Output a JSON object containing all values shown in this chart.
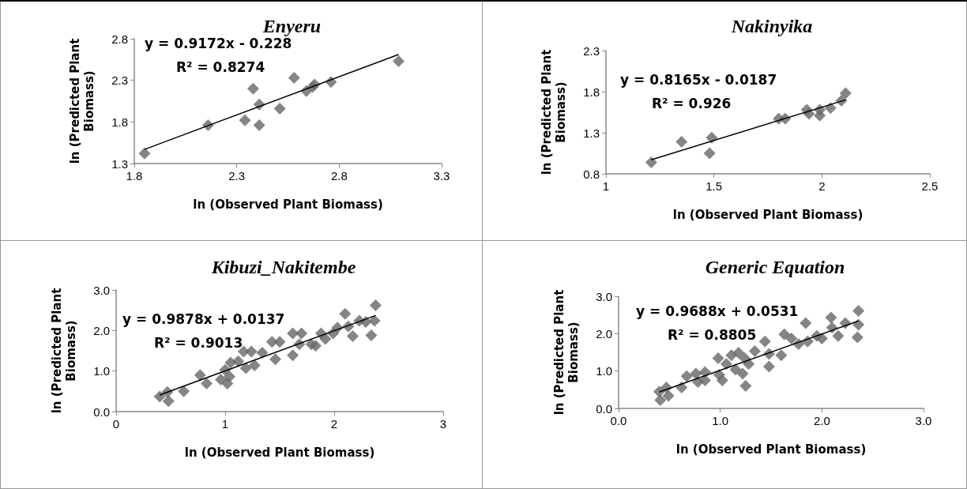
{
  "chart_data": [
    {
      "type": "scatter",
      "title": "Enyeru",
      "xlabel": "ln (Observed Plant Biomass)",
      "ylabel": "ln (Predicted Plant Biomass)",
      "xlim": [
        1.8,
        3.3
      ],
      "xticks": [
        1.8,
        2.3,
        2.8,
        3.3
      ],
      "ylim": [
        1.3,
        2.8
      ],
      "yticks": [
        1.3,
        1.8,
        2.3,
        2.8
      ],
      "grid": false,
      "marker": "diamond",
      "annotations": [
        "y = 0.9172x - 0.228",
        "R² = 0.8274"
      ],
      "series": [
        {
          "color": "#666666",
          "x": [
            1.85,
            2.16,
            2.34,
            2.38,
            2.41,
            2.41,
            2.51,
            2.58,
            2.64,
            2.67,
            2.68,
            2.76,
            3.09
          ],
          "values": [
            1.42,
            1.76,
            1.82,
            2.2,
            1.76,
            2.01,
            1.96,
            2.33,
            2.17,
            2.22,
            2.25,
            2.28,
            2.53
          ]
        },
        {
          "type": "line",
          "marker": "none",
          "color": "#000000",
          "x": [
            1.85,
            3.09
          ],
          "values": [
            1.47,
            2.61
          ]
        }
      ]
    },
    {
      "type": "scatter",
      "title": "Nakinyika",
      "xlabel": "ln (Observed Plant Biomass)",
      "ylabel": "ln (Predicted Plant Biomass)",
      "xlim": [
        1,
        2.5
      ],
      "xticks": [
        1,
        1.5,
        2,
        2.5
      ],
      "ylim": [
        0.8,
        2.3
      ],
      "yticks": [
        0.8,
        1.3,
        1.8,
        2.3
      ],
      "grid": false,
      "marker": "diamond",
      "annotations": [
        "y = 0.8165x - 0.0187",
        "R² = 0.926"
      ],
      "series": [
        {
          "color": "#666666",
          "x": [
            1.21,
            1.35,
            1.49,
            1.48,
            1.8,
            1.83,
            1.93,
            1.94,
            1.99,
            1.99,
            2.04,
            2.09,
            2.11
          ],
          "values": [
            0.94,
            1.19,
            1.24,
            1.05,
            1.47,
            1.47,
            1.58,
            1.53,
            1.51,
            1.58,
            1.6,
            1.69,
            1.78
          ]
        },
        {
          "type": "line",
          "marker": "none",
          "color": "#000000",
          "x": [
            1.21,
            2.11
          ],
          "values": [
            0.97,
            1.7
          ]
        }
      ]
    },
    {
      "type": "scatter",
      "title": "Kibuzi_Nakitembe",
      "xlabel": "ln (Observed Plant Biomass)",
      "ylabel": "ln (Predicted Plant Biomass)",
      "xlim": [
        0,
        3
      ],
      "xticks": [
        0,
        1,
        2,
        3
      ],
      "ylim": [
        0,
        3
      ],
      "yticks": [
        {
          "value": 0,
          "label": "0.0"
        },
        {
          "value": 1,
          "label": "1.0"
        },
        {
          "value": 2,
          "label": "2.0"
        },
        {
          "value": 3,
          "label": "3.0"
        }
      ],
      "grid": false,
      "marker": "diamond",
      "annotations": [
        "y = 0.9878x + 0.0137",
        "R² = 0.9013"
      ],
      "series": [
        {
          "color": "#666666",
          "x": [
            0.4,
            0.47,
            0.48,
            0.62,
            0.77,
            0.83,
            0.96,
            1.0,
            1.02,
            1.04,
            1.05,
            1.12,
            1.17,
            1.19,
            1.24,
            1.27,
            1.34,
            1.43,
            1.46,
            1.5,
            1.62,
            1.62,
            1.7,
            1.68,
            1.79,
            1.83,
            1.88,
            1.92,
            1.99,
            2.03,
            2.1,
            2.13,
            2.17,
            2.23,
            2.29,
            2.34,
            2.37,
            2.38
          ],
          "values": [
            0.37,
            0.48,
            0.26,
            0.5,
            0.9,
            0.69,
            0.79,
            1.03,
            0.69,
            0.86,
            1.21,
            1.24,
            1.48,
            1.07,
            1.48,
            1.14,
            1.45,
            1.72,
            1.29,
            1.72,
            1.39,
            1.93,
            1.93,
            1.66,
            1.66,
            1.62,
            1.93,
            1.79,
            1.93,
            2.07,
            2.41,
            2.1,
            1.86,
            2.24,
            2.21,
            1.88,
            2.24,
            2.62
          ]
        },
        {
          "type": "line",
          "marker": "none",
          "color": "#000000",
          "x": [
            0.4,
            2.38
          ],
          "values": [
            0.41,
            2.37
          ]
        }
      ]
    },
    {
      "type": "scatter",
      "title": "Generic Equation",
      "xlabel": "ln (Observed Plant Biomass)",
      "ylabel": "ln (Predicted Plant Biomass)",
      "xlim": [
        0,
        3
      ],
      "xticks": [
        {
          "value": 0,
          "label": "0.0"
        },
        {
          "value": 1,
          "label": "1.0"
        },
        {
          "value": 2,
          "label": "2.0"
        },
        {
          "value": 3,
          "label": "3.0"
        }
      ],
      "ylim": [
        0,
        3
      ],
      "yticks": [
        {
          "value": 0,
          "label": "0.0"
        },
        {
          "value": 1,
          "label": "1.0"
        },
        {
          "value": 2,
          "label": "2.0"
        },
        {
          "value": 3,
          "label": "3.0"
        }
      ],
      "grid": false,
      "marker": "diamond",
      "annotations": [
        "y = 0.9688x + 0.0531",
        "R² = 0.8805"
      ],
      "series": [
        {
          "color": "#666666",
          "x": [
            0.4,
            0.41,
            0.47,
            0.49,
            0.62,
            0.67,
            0.76,
            0.78,
            0.85,
            0.85,
            0.98,
            0.99,
            1.02,
            1.06,
            1.11,
            1.15,
            1.18,
            1.24,
            1.22,
            1.25,
            1.28,
            1.34,
            1.44,
            1.48,
            1.48,
            1.6,
            1.63,
            1.7,
            1.77,
            1.84,
            1.86,
            1.95,
            2.0,
            2.09,
            2.1,
            2.16,
            2.23,
            2.35,
            2.36,
            2.36
          ],
          "values": [
            0.45,
            0.22,
            0.56,
            0.34,
            0.56,
            0.86,
            0.93,
            0.71,
            0.97,
            0.75,
            1.34,
            0.9,
            0.75,
            1.19,
            1.42,
            1.04,
            1.49,
            1.34,
            0.93,
            0.6,
            1.19,
            1.53,
            1.79,
            1.12,
            1.46,
            1.42,
            1.98,
            1.87,
            1.72,
            2.28,
            1.79,
            1.94,
            1.87,
            2.43,
            2.16,
            1.94,
            2.28,
            1.9,
            2.24,
            2.61
          ]
        },
        {
          "type": "line",
          "marker": "none",
          "color": "#000000",
          "x": [
            0.4,
            2.36
          ],
          "values": [
            0.44,
            2.34
          ]
        }
      ]
    }
  ]
}
